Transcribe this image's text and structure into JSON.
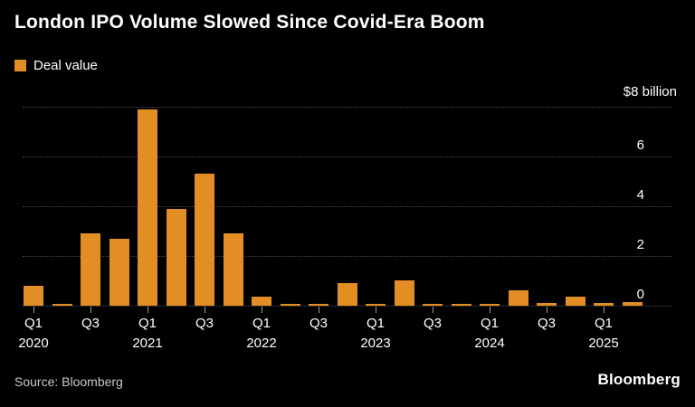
{
  "title": "London IPO Volume Slowed Since Covid-Era Boom",
  "legend": {
    "label": "Deal value"
  },
  "colors": {
    "background": "#000000",
    "bar": "#E28E24",
    "grid": "#4B4B4B",
    "text": "#FFFFFF",
    "tick": "#9A9A9A"
  },
  "footer": {
    "source": "Source: Bloomberg",
    "brand": "Bloomberg"
  },
  "chart_data": {
    "type": "bar",
    "title": "London IPO Volume Slowed Since Covid-Era Boom",
    "series_name": "Deal value",
    "y_axis_top_label": "$8 billion",
    "ylabel": "Deal value ($ billion)",
    "xlabel": "",
    "ylim": [
      0,
      8
    ],
    "y_ticks": [
      0,
      2,
      4,
      6,
      8
    ],
    "grid": "dotted-horizontal",
    "legend_position": "top-left",
    "categories": [
      "Q1 2020",
      "Q2 2020",
      "Q3 2020",
      "Q4 2020",
      "Q1 2021",
      "Q2 2021",
      "Q3 2021",
      "Q4 2021",
      "Q1 2022",
      "Q2 2022",
      "Q3 2022",
      "Q4 2022",
      "Q1 2023",
      "Q2 2023",
      "Q3 2023",
      "Q4 2023",
      "Q1 2024",
      "Q2 2024",
      "Q3 2024",
      "Q4 2024",
      "Q1 2025",
      "Q2 2025"
    ],
    "values": [
      0.8,
      0.05,
      2.9,
      2.7,
      7.9,
      3.9,
      5.3,
      2.9,
      0.35,
      0.05,
      0.05,
      0.9,
      0.05,
      1.0,
      0.05,
      0.05,
      0.05,
      0.6,
      0.1,
      0.35,
      0.1,
      0.15
    ],
    "x_axis_ticks": [
      {
        "index": 0,
        "label": "Q1",
        "year": "2020"
      },
      {
        "index": 2,
        "label": "Q3"
      },
      {
        "index": 4,
        "label": "Q1",
        "year": "2021"
      },
      {
        "index": 6,
        "label": "Q3"
      },
      {
        "index": 8,
        "label": "Q1",
        "year": "2022"
      },
      {
        "index": 10,
        "label": "Q3"
      },
      {
        "index": 12,
        "label": "Q1",
        "year": "2023"
      },
      {
        "index": 14,
        "label": "Q3"
      },
      {
        "index": 16,
        "label": "Q1",
        "year": "2024"
      },
      {
        "index": 18,
        "label": "Q3"
      },
      {
        "index": 20,
        "label": "Q1",
        "year": "2025"
      }
    ]
  }
}
